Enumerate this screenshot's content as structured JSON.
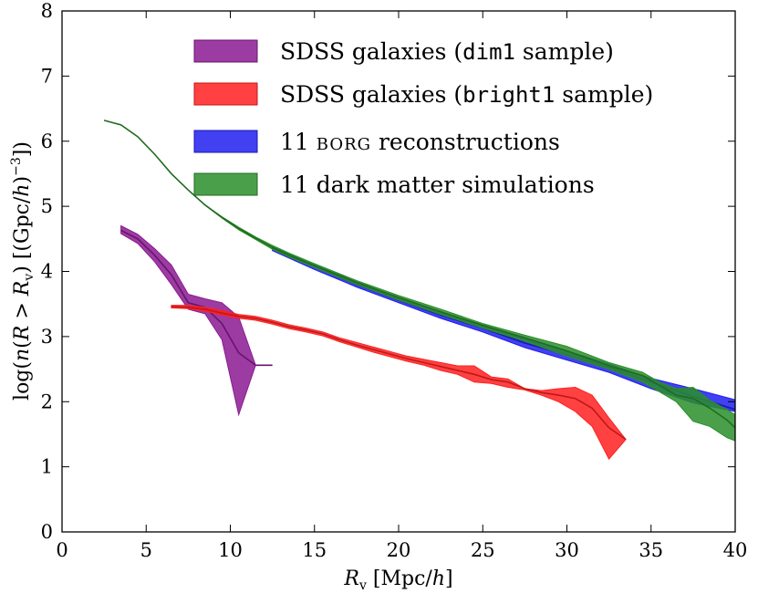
{
  "chart_data": {
    "type": "area",
    "title": "",
    "xlabel": "R_v [Mpc/h]",
    "ylabel": "log(n(R > R_v) [(Gpc/h)^-3])",
    "xlim": [
      0,
      40
    ],
    "ylim": [
      0,
      8
    ],
    "x_ticks": [
      "0",
      "5",
      "10",
      "15",
      "20",
      "25",
      "30",
      "35",
      "40"
    ],
    "y_ticks": [
      "0",
      "1",
      "2",
      "3",
      "4",
      "5",
      "6",
      "7",
      "8"
    ],
    "grid": false,
    "legend_position": "top-right",
    "series": [
      {
        "name": "SDSS galaxies (dim1 sample)",
        "legend_pre": "SDSS galaxies (",
        "legend_mono": "dim1",
        "legend_post": " sample)",
        "color": "#8b1a92",
        "x": [
          3.5,
          4.5,
          5.5,
          6.5,
          7.5,
          8.5,
          9.5,
          10.5,
          11.5,
          12.5
        ],
        "center": [
          4.63,
          4.5,
          4.25,
          3.95,
          3.52,
          3.45,
          3.2,
          2.75,
          2.56,
          2.56
        ],
        "upper": [
          4.7,
          4.57,
          4.35,
          4.1,
          3.65,
          3.58,
          3.52,
          3.3,
          2.56,
          2.56
        ],
        "lower": [
          4.58,
          4.43,
          4.15,
          3.8,
          3.42,
          3.35,
          2.95,
          1.8,
          2.56,
          2.56
        ]
      },
      {
        "name": "SDSS galaxies (bright1 sample)",
        "legend_pre": "SDSS galaxies (",
        "legend_mono": "bright1",
        "legend_post": " sample)",
        "color": "#ff2020",
        "x": [
          6.5,
          7.5,
          8.5,
          9.5,
          10.5,
          11.5,
          12.5,
          13.5,
          14.5,
          15.5,
          16.5,
          17.5,
          18.5,
          19.5,
          20.5,
          21.5,
          22.5,
          23.5,
          24.5,
          25.5,
          26.5,
          27.5,
          28.5,
          29.5,
          30.5,
          31.5,
          32.5,
          33.5
        ],
        "center": [
          3.46,
          3.45,
          3.42,
          3.36,
          3.31,
          3.28,
          3.22,
          3.15,
          3.1,
          3.04,
          2.95,
          2.87,
          2.8,
          2.73,
          2.66,
          2.6,
          2.54,
          2.48,
          2.42,
          2.34,
          2.3,
          2.2,
          2.14,
          2.1,
          2.05,
          1.9,
          1.6,
          1.42
        ],
        "upper": [
          3.48,
          3.48,
          3.45,
          3.4,
          3.34,
          3.31,
          3.25,
          3.18,
          3.13,
          3.07,
          2.98,
          2.91,
          2.84,
          2.77,
          2.7,
          2.65,
          2.6,
          2.55,
          2.55,
          2.38,
          2.35,
          2.2,
          2.17,
          2.2,
          2.22,
          2.1,
          1.75,
          1.42
        ],
        "lower": [
          3.44,
          3.43,
          3.39,
          3.33,
          3.28,
          3.25,
          3.19,
          3.12,
          3.07,
          3.01,
          2.92,
          2.84,
          2.76,
          2.69,
          2.62,
          2.56,
          2.48,
          2.42,
          2.3,
          2.28,
          2.22,
          2.18,
          2.1,
          2.0,
          1.85,
          1.62,
          1.12,
          1.42
        ]
      },
      {
        "name": "11 BORG reconstructions",
        "legend_pre": "11 ",
        "legend_caps": "borg",
        "legend_post": " reconstructions",
        "color": "#2020ee",
        "x": [
          12.5,
          15,
          17.5,
          20,
          22.5,
          25,
          27.5,
          30,
          32.5,
          35,
          37.5,
          40
        ],
        "center": [
          4.35,
          4.07,
          3.8,
          3.56,
          3.33,
          3.13,
          2.9,
          2.72,
          2.52,
          2.3,
          2.08,
          1.88
        ],
        "upper": [
          4.38,
          4.1,
          3.84,
          3.6,
          3.38,
          3.18,
          2.96,
          2.78,
          2.58,
          2.36,
          2.2,
          2.03
        ],
        "lower": [
          4.32,
          4.03,
          3.76,
          3.52,
          3.28,
          3.07,
          2.83,
          2.64,
          2.45,
          2.2,
          1.98,
          1.85
        ]
      },
      {
        "name": "11 dark matter simulations",
        "legend_pre": "11 dark matter simulations",
        "color": "#2a8f2a",
        "x": [
          2.5,
          3.5,
          4.5,
          5.5,
          6.5,
          7.5,
          8.5,
          9.5,
          10.5,
          11.5,
          12.5,
          13.5,
          15,
          17.5,
          20,
          22.5,
          25,
          27.5,
          30,
          32.5,
          34.5,
          35.5,
          36.5,
          37.5,
          38.5,
          39.5,
          40
        ],
        "center": [
          6.32,
          6.25,
          6.07,
          5.8,
          5.5,
          5.25,
          5.02,
          4.83,
          4.66,
          4.51,
          4.37,
          4.25,
          4.09,
          3.83,
          3.6,
          3.38,
          3.17,
          2.98,
          2.78,
          2.55,
          2.4,
          2.25,
          2.1,
          2.05,
          1.9,
          1.72,
          1.6
        ],
        "upper": [
          6.32,
          6.25,
          6.07,
          5.8,
          5.5,
          5.25,
          5.02,
          4.84,
          4.68,
          4.53,
          4.4,
          4.28,
          4.12,
          3.86,
          3.63,
          3.42,
          3.2,
          3.02,
          2.85,
          2.6,
          2.45,
          2.3,
          2.2,
          2.22,
          2.02,
          1.88,
          1.8
        ],
        "lower": [
          6.32,
          6.25,
          6.07,
          5.8,
          5.5,
          5.25,
          5.02,
          4.82,
          4.64,
          4.49,
          4.34,
          4.22,
          4.06,
          3.8,
          3.56,
          3.34,
          3.13,
          2.93,
          2.7,
          2.5,
          2.3,
          2.15,
          2.0,
          1.7,
          1.62,
          1.45,
          1.4
        ]
      }
    ]
  }
}
